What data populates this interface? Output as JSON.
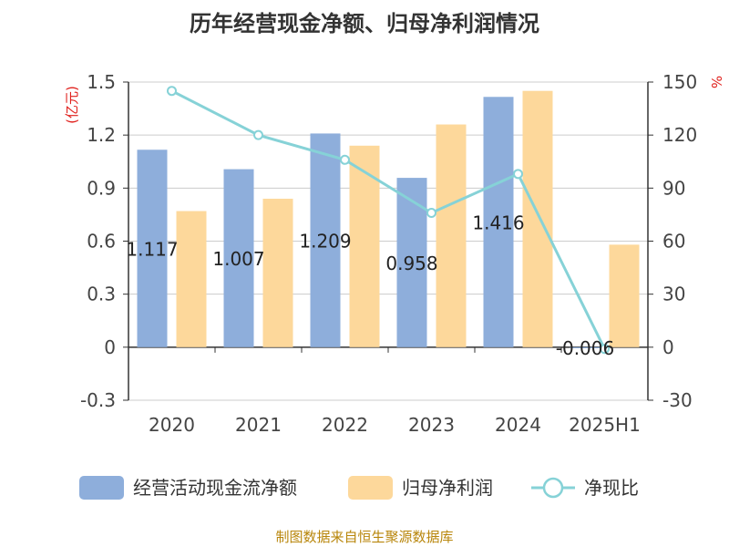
{
  "chart_data": {
    "type": "bar",
    "title": "历年经营现金净额、归母净利润情况",
    "categories": [
      "2020",
      "2021",
      "2022",
      "2023",
      "2024",
      "2025H1"
    ],
    "left_axis": {
      "unit": "(亿元)",
      "ylim": [
        -0.3,
        1.5
      ],
      "ticks": [
        "-0.3",
        "0",
        "0.3",
        "0.6",
        "0.9",
        "1.2",
        "1.5"
      ]
    },
    "right_axis": {
      "unit": "%",
      "ylim": [
        -30,
        150
      ],
      "ticks": [
        "-30",
        "0",
        "30",
        "60",
        "90",
        "120",
        "150"
      ]
    },
    "series": [
      {
        "name": "经营活动现金流净额",
        "type": "bar",
        "axis": "left",
        "color": "#8eaedb",
        "values": [
          1.117,
          1.007,
          1.209,
          0.958,
          1.416,
          -0.006
        ],
        "labels": [
          "1.117",
          "1.007",
          "1.209",
          "0.958",
          "1.416",
          "-0.006"
        ]
      },
      {
        "name": "归母净利润",
        "type": "bar",
        "axis": "left",
        "color": "#fdd89b",
        "values": [
          0.77,
          0.84,
          1.14,
          1.26,
          1.45,
          0.58
        ]
      },
      {
        "name": "净现比",
        "type": "line",
        "axis": "right",
        "color": "#86d2d7",
        "values": [
          145,
          120,
          106,
          76,
          98,
          -1
        ]
      }
    ],
    "grid": true,
    "legend_position": "bottom"
  },
  "source": "制图数据来自恒生聚源数据库"
}
